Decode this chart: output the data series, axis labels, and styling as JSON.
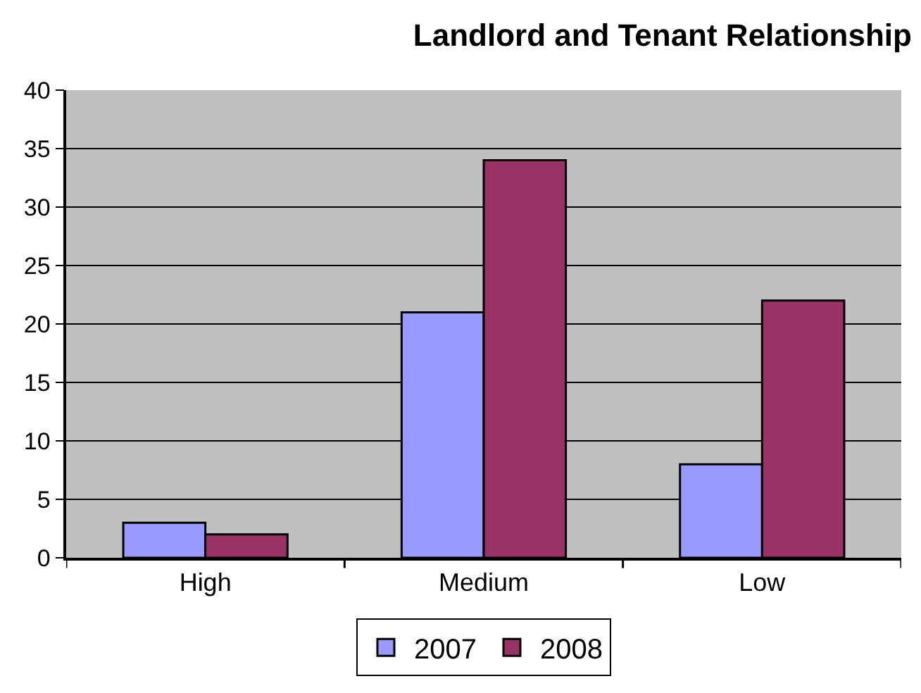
{
  "chart_data": {
    "type": "bar",
    "title": "Landlord and Tenant Relationship",
    "categories": [
      "High",
      "Medium",
      "Low"
    ],
    "series": [
      {
        "name": "2007",
        "color": "#9999ff",
        "values": [
          3,
          21,
          8
        ]
      },
      {
        "name": "2008",
        "color": "#993366",
        "values": [
          2,
          34,
          22
        ]
      }
    ],
    "ylim": [
      0,
      40
    ],
    "yticks": [
      0,
      5,
      10,
      15,
      20,
      25,
      30,
      35,
      40
    ],
    "grid": "y",
    "legend": "bottom"
  }
}
